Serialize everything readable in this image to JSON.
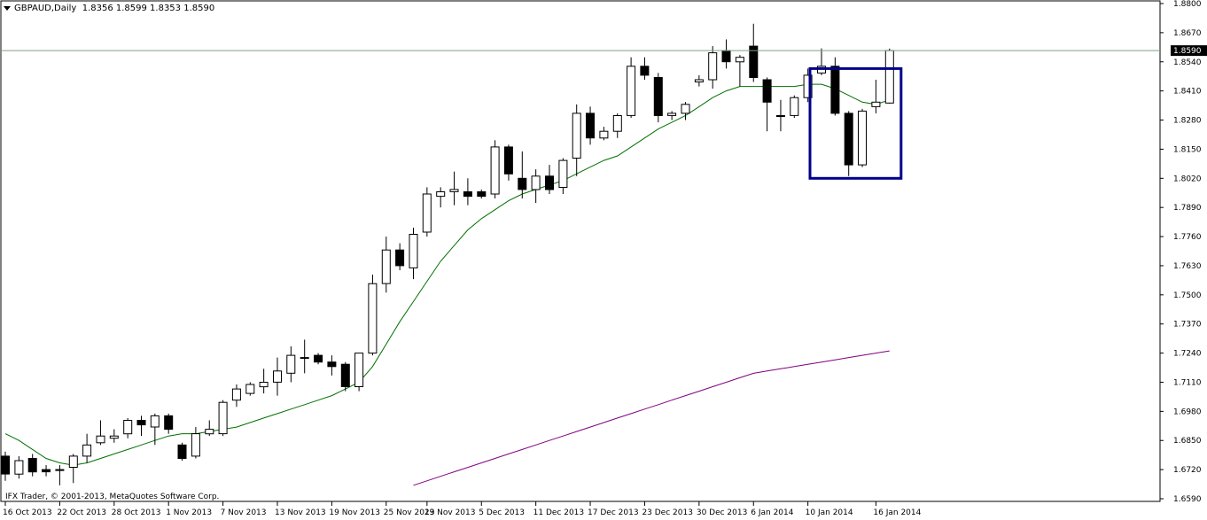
{
  "header": {
    "symbol": "GBPAUD,Daily",
    "ohlc": "1.8356 1.8599 1.8353 1.8590"
  },
  "copyright": "IFX Trader, © 2001-2013, MetaQuotes Software Corp.",
  "current_price_label": "1.8590",
  "colors": {
    "background": "#ffffff",
    "axis": "#000000",
    "ma_fast": "#007000",
    "ma_slow": "#800080",
    "highlight_box": "#00008b",
    "price_line": "#7f9f7f"
  },
  "chart_data": {
    "type": "candlestick",
    "symbol": "GBPAUD",
    "timeframe": "Daily",
    "ylim": [
      1.659,
      1.88
    ],
    "y_ticks": [
      "1.8800",
      "1.8670",
      "1.8540",
      "1.8410",
      "1.8280",
      "1.8150",
      "1.8020",
      "1.7890",
      "1.7760",
      "1.7630",
      "1.7500",
      "1.7370",
      "1.7240",
      "1.7110",
      "1.6980",
      "1.6850",
      "1.6720",
      "1.6590"
    ],
    "x_labels": [
      "16 Oct 2013",
      "22 Oct 2013",
      "28 Oct 2013",
      "1 Nov 2013",
      "7 Nov 2013",
      "13 Nov 2013",
      "19 Nov 2013",
      "25 Nov 2013",
      "29 Nov 2013",
      "5 Dec 2013",
      "11 Dec 2013",
      "17 Dec 2013",
      "23 Dec 2013",
      "30 Dec 2013",
      "6 Jan 2014",
      "10 Jan 2014",
      "16 Jan 2014"
    ],
    "current_price": 1.859,
    "candles": [
      {
        "o": 1.678,
        "h": 1.68,
        "l": 1.667,
        "c": 1.67
      },
      {
        "o": 1.67,
        "h": 1.678,
        "l": 1.668,
        "c": 1.676
      },
      {
        "o": 1.677,
        "h": 1.679,
        "l": 1.669,
        "c": 1.671
      },
      {
        "o": 1.672,
        "h": 1.674,
        "l": 1.669,
        "c": 1.671
      },
      {
        "o": 1.672,
        "h": 1.674,
        "l": 1.665,
        "c": 1.672
      },
      {
        "o": 1.673,
        "h": 1.679,
        "l": 1.666,
        "c": 1.678
      },
      {
        "o": 1.678,
        "h": 1.688,
        "l": 1.675,
        "c": 1.683
      },
      {
        "o": 1.684,
        "h": 1.694,
        "l": 1.683,
        "c": 1.687
      },
      {
        "o": 1.686,
        "h": 1.69,
        "l": 1.684,
        "c": 1.687
      },
      {
        "o": 1.688,
        "h": 1.695,
        "l": 1.686,
        "c": 1.694
      },
      {
        "o": 1.694,
        "h": 1.696,
        "l": 1.687,
        "c": 1.692
      },
      {
        "o": 1.691,
        "h": 1.697,
        "l": 1.683,
        "c": 1.696
      },
      {
        "o": 1.696,
        "h": 1.697,
        "l": 1.688,
        "c": 1.69
      },
      {
        "o": 1.683,
        "h": 1.684,
        "l": 1.676,
        "c": 1.677
      },
      {
        "o": 1.678,
        "h": 1.691,
        "l": 1.677,
        "c": 1.688
      },
      {
        "o": 1.688,
        "h": 1.694,
        "l": 1.687,
        "c": 1.69
      },
      {
        "o": 1.688,
        "h": 1.703,
        "l": 1.687,
        "c": 1.702
      },
      {
        "o": 1.703,
        "h": 1.71,
        "l": 1.7,
        "c": 1.708
      },
      {
        "o": 1.706,
        "h": 1.711,
        "l": 1.705,
        "c": 1.71
      },
      {
        "o": 1.709,
        "h": 1.717,
        "l": 1.706,
        "c": 1.711
      },
      {
        "o": 1.711,
        "h": 1.722,
        "l": 1.705,
        "c": 1.716
      },
      {
        "o": 1.715,
        "h": 1.727,
        "l": 1.711,
        "c": 1.723
      },
      {
        "o": 1.722,
        "h": 1.73,
        "l": 1.715,
        "c": 1.722
      },
      {
        "o": 1.723,
        "h": 1.724,
        "l": 1.719,
        "c": 1.72
      },
      {
        "o": 1.72,
        "h": 1.723,
        "l": 1.714,
        "c": 1.718
      },
      {
        "o": 1.719,
        "h": 1.72,
        "l": 1.707,
        "c": 1.709
      },
      {
        "o": 1.709,
        "h": 1.724,
        "l": 1.707,
        "c": 1.724
      },
      {
        "o": 1.724,
        "h": 1.759,
        "l": 1.723,
        "c": 1.755
      },
      {
        "o": 1.755,
        "h": 1.776,
        "l": 1.751,
        "c": 1.77
      },
      {
        "o": 1.77,
        "h": 1.773,
        "l": 1.761,
        "c": 1.763
      },
      {
        "o": 1.762,
        "h": 1.78,
        "l": 1.757,
        "c": 1.777
      },
      {
        "o": 1.778,
        "h": 1.798,
        "l": 1.776,
        "c": 1.795
      },
      {
        "o": 1.794,
        "h": 1.798,
        "l": 1.789,
        "c": 1.796
      },
      {
        "o": 1.796,
        "h": 1.805,
        "l": 1.79,
        "c": 1.797
      },
      {
        "o": 1.796,
        "h": 1.802,
        "l": 1.79,
        "c": 1.794
      },
      {
        "o": 1.796,
        "h": 1.797,
        "l": 1.793,
        "c": 1.794
      },
      {
        "o": 1.795,
        "h": 1.819,
        "l": 1.793,
        "c": 1.816
      },
      {
        "o": 1.816,
        "h": 1.817,
        "l": 1.801,
        "c": 1.804
      },
      {
        "o": 1.802,
        "h": 1.814,
        "l": 1.793,
        "c": 1.797
      },
      {
        "o": 1.797,
        "h": 1.806,
        "l": 1.791,
        "c": 1.803
      },
      {
        "o": 1.803,
        "h": 1.808,
        "l": 1.795,
        "c": 1.797
      },
      {
        "o": 1.798,
        "h": 1.811,
        "l": 1.795,
        "c": 1.81
      },
      {
        "o": 1.811,
        "h": 1.835,
        "l": 1.803,
        "c": 1.831
      },
      {
        "o": 1.831,
        "h": 1.834,
        "l": 1.817,
        "c": 1.82
      },
      {
        "o": 1.82,
        "h": 1.825,
        "l": 1.819,
        "c": 1.823
      },
      {
        "o": 1.823,
        "h": 1.831,
        "l": 1.82,
        "c": 1.83
      },
      {
        "o": 1.83,
        "h": 1.856,
        "l": 1.829,
        "c": 1.852
      },
      {
        "o": 1.852,
        "h": 1.856,
        "l": 1.846,
        "c": 1.848
      },
      {
        "o": 1.847,
        "h": 1.849,
        "l": 1.827,
        "c": 1.83
      },
      {
        "o": 1.83,
        "h": 1.832,
        "l": 1.828,
        "c": 1.831
      },
      {
        "o": 1.831,
        "h": 1.836,
        "l": 1.828,
        "c": 1.835
      },
      {
        "o": 1.845,
        "h": 1.848,
        "l": 1.843,
        "c": 1.846
      },
      {
        "o": 1.846,
        "h": 1.861,
        "l": 1.842,
        "c": 1.858
      },
      {
        "o": 1.859,
        "h": 1.864,
        "l": 1.851,
        "c": 1.854
      },
      {
        "o": 1.854,
        "h": 1.857,
        "l": 1.843,
        "c": 1.856
      },
      {
        "o": 1.861,
        "h": 1.871,
        "l": 1.845,
        "c": 1.847
      },
      {
        "o": 1.846,
        "h": 1.847,
        "l": 1.823,
        "c": 1.836
      },
      {
        "o": 1.83,
        "h": 1.837,
        "l": 1.823,
        "c": 1.83
      },
      {
        "o": 1.83,
        "h": 1.839,
        "l": 1.829,
        "c": 1.838
      },
      {
        "o": 1.838,
        "h": 1.851,
        "l": 1.836,
        "c": 1.848
      },
      {
        "o": 1.849,
        "h": 1.86,
        "l": 1.848,
        "c": 1.852
      },
      {
        "o": 1.852,
        "h": 1.856,
        "l": 1.83,
        "c": 1.831
      },
      {
        "o": 1.831,
        "h": 1.832,
        "l": 1.803,
        "c": 1.808
      },
      {
        "o": 1.808,
        "h": 1.833,
        "l": 1.807,
        "c": 1.832
      },
      {
        "o": 1.834,
        "h": 1.846,
        "l": 1.831,
        "c": 1.836
      },
      {
        "o": 1.8356,
        "h": 1.8599,
        "l": 1.8353,
        "c": 1.859
      }
    ],
    "ma_fast": [
      1.688,
      1.685,
      1.681,
      1.677,
      1.675,
      1.674,
      1.675,
      1.677,
      1.679,
      1.681,
      1.683,
      1.685,
      1.687,
      1.688,
      1.688,
      1.689,
      1.69,
      1.691,
      1.693,
      1.695,
      1.697,
      1.699,
      1.701,
      1.703,
      1.705,
      1.708,
      1.711,
      1.718,
      1.728,
      1.738,
      1.747,
      1.756,
      1.765,
      1.772,
      1.779,
      1.784,
      1.788,
      1.792,
      1.795,
      1.797,
      1.799,
      1.801,
      1.804,
      1.807,
      1.81,
      1.812,
      1.816,
      1.82,
      1.824,
      1.827,
      1.83,
      1.834,
      1.838,
      1.841,
      1.843,
      1.843,
      1.843,
      1.843,
      1.843,
      1.844,
      1.844,
      1.842,
      1.839,
      1.836,
      1.835,
      1.837
    ],
    "ma_slow": [
      null,
      null,
      null,
      null,
      null,
      null,
      null,
      null,
      null,
      null,
      null,
      null,
      null,
      null,
      null,
      null,
      null,
      null,
      null,
      null,
      null,
      null,
      null,
      null,
      null,
      null,
      null,
      null,
      null,
      null,
      1.665,
      1.667,
      1.669,
      1.671,
      1.673,
      1.675,
      1.677,
      1.679,
      1.681,
      1.683,
      1.685,
      1.687,
      1.689,
      1.691,
      1.693,
      1.695,
      1.697,
      1.699,
      1.701,
      1.703,
      1.705,
      1.707,
      1.709,
      1.711,
      1.713,
      1.715,
      1.716,
      1.717,
      1.718,
      1.719,
      1.72,
      1.721,
      1.722,
      1.723,
      1.724,
      1.725
    ],
    "highlight_range": {
      "from_index": 60,
      "to_index": 65,
      "high": 1.851,
      "low": 1.802
    }
  }
}
